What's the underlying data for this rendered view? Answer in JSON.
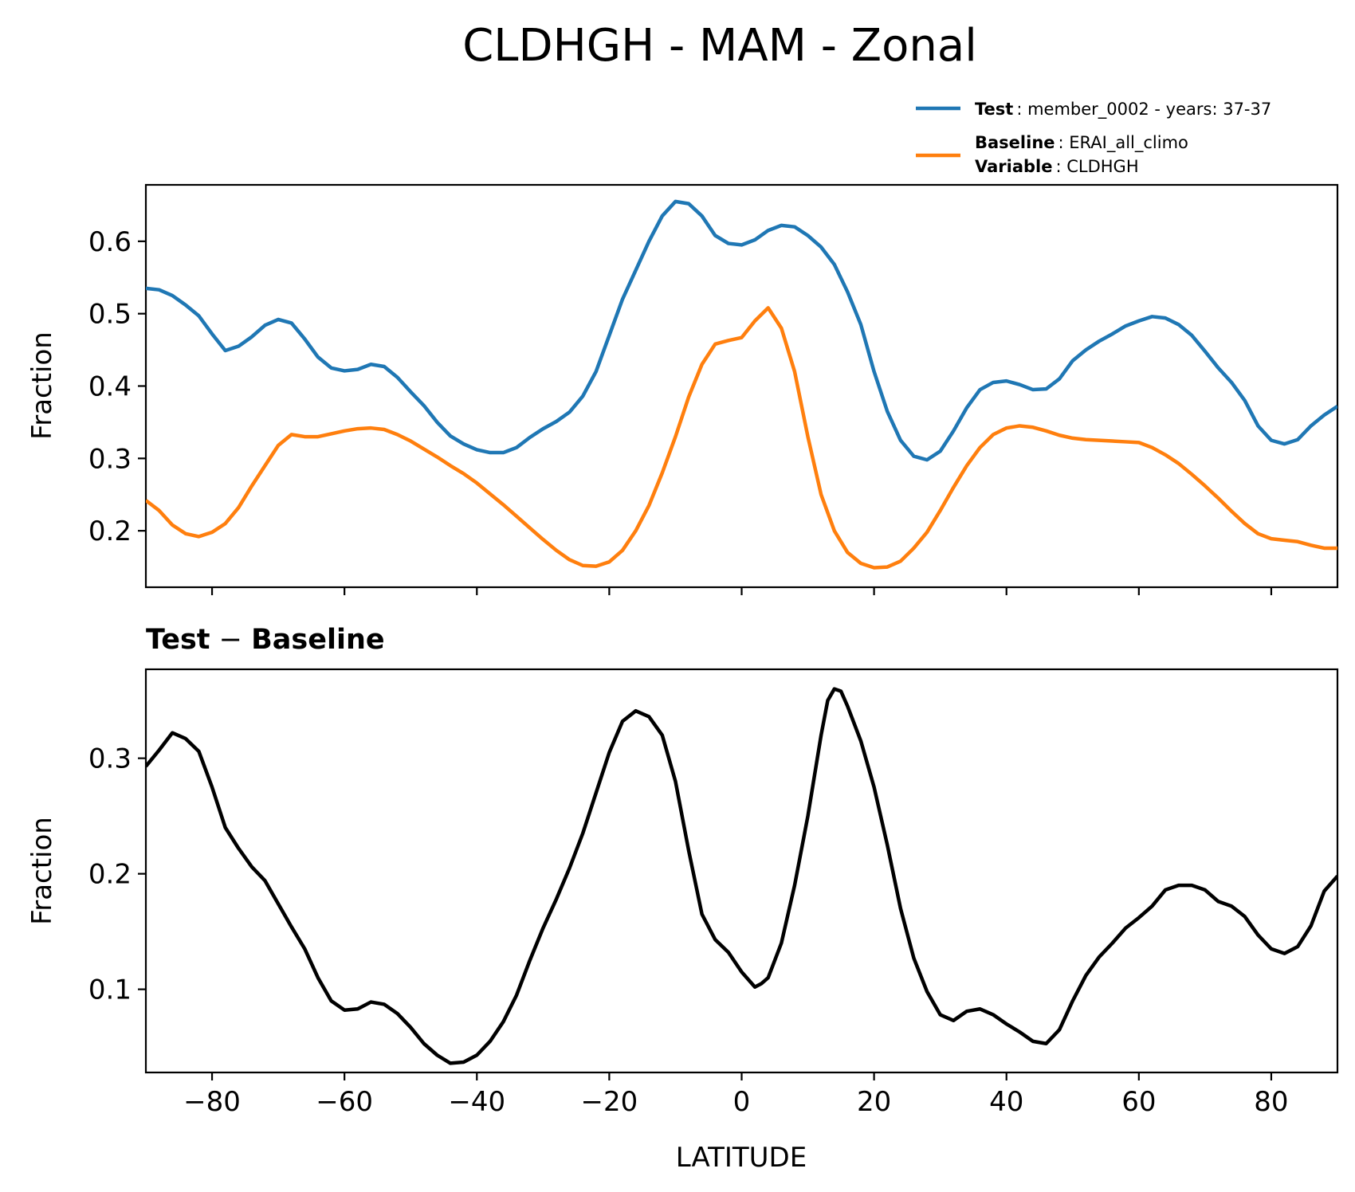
{
  "figure": {
    "title": "CLDHGH - MAM - Zonal"
  },
  "legend": {
    "test_key": "Test",
    "test_value": ": member_0002 - years: 37-37",
    "baseline_key": "Baseline",
    "baseline_value": ": ERAI_all_climo",
    "variable_key": "Variable",
    "variable_value": ": CLDHGH"
  },
  "diff_title": {
    "left": "Test",
    "op": " − ",
    "right": "Baseline"
  },
  "colors": {
    "test": "#1f77b4",
    "baseline": "#ff7f0e",
    "diff": "#000000"
  },
  "chart_data": [
    {
      "type": "line",
      "title": "CLDHGH - MAM - Zonal",
      "xlabel": "",
      "ylabel": "Fraction",
      "xlim": [
        -90,
        90
      ],
      "ylim": [
        0.122,
        0.678
      ],
      "yticks": [
        "0.2",
        "0.3",
        "0.4",
        "0.5",
        "0.6"
      ],
      "xticks": [
        -80,
        -60,
        -40,
        -20,
        0,
        20,
        40,
        60,
        80
      ],
      "legend_position": "top-right (above axes)",
      "series": [
        {
          "name": "Test",
          "x": [
            -90,
            -88,
            -86,
            -84,
            -82,
            -80,
            -78,
            -76,
            -74,
            -72,
            -70,
            -68,
            -66,
            -64,
            -62,
            -60,
            -58,
            -56,
            -54,
            -52,
            -50,
            -48,
            -46,
            -44,
            -42,
            -40,
            -38,
            -36,
            -34,
            -32,
            -30,
            -28,
            -26,
            -24,
            -22,
            -20,
            -18,
            -16,
            -14,
            -12,
            -10,
            -8,
            -6,
            -4,
            -2,
            0,
            2,
            4,
            6,
            8,
            10,
            12,
            14,
            16,
            18,
            20,
            22,
            24,
            26,
            28,
            30,
            32,
            34,
            36,
            38,
            40,
            42,
            44,
            46,
            48,
            50,
            52,
            54,
            56,
            58,
            60,
            62,
            64,
            66,
            68,
            70,
            72,
            74,
            76,
            78,
            80,
            82,
            84,
            86,
            88,
            90
          ],
          "y": [
            0.535,
            0.533,
            0.525,
            0.512,
            0.497,
            0.472,
            0.449,
            0.455,
            0.468,
            0.484,
            0.492,
            0.487,
            0.465,
            0.44,
            0.425,
            0.421,
            0.423,
            0.43,
            0.427,
            0.412,
            0.392,
            0.373,
            0.35,
            0.331,
            0.32,
            0.312,
            0.308,
            0.308,
            0.315,
            0.329,
            0.341,
            0.351,
            0.364,
            0.386,
            0.42,
            0.47,
            0.52,
            0.56,
            0.6,
            0.635,
            0.655,
            0.652,
            0.635,
            0.608,
            0.597,
            0.595,
            0.602,
            0.615,
            0.622,
            0.62,
            0.608,
            0.592,
            0.568,
            0.53,
            0.485,
            0.42,
            0.365,
            0.325,
            0.303,
            0.298,
            0.31,
            0.338,
            0.37,
            0.395,
            0.405,
            0.407,
            0.402,
            0.395,
            0.396,
            0.41,
            0.435,
            0.45,
            0.462,
            0.472,
            0.483,
            0.49,
            0.496,
            0.494,
            0.485,
            0.47,
            0.448,
            0.425,
            0.405,
            0.38,
            0.345,
            0.325,
            0.32,
            0.326,
            0.345,
            0.36,
            0.372
          ]
        },
        {
          "name": "Baseline",
          "x": [
            -90,
            -88,
            -86,
            -84,
            -82,
            -80,
            -78,
            -76,
            -74,
            -72,
            -70,
            -68,
            -66,
            -64,
            -62,
            -60,
            -58,
            -56,
            -54,
            -52,
            -50,
            -48,
            -46,
            -44,
            -42,
            -40,
            -38,
            -36,
            -34,
            -32,
            -30,
            -28,
            -26,
            -24,
            -22,
            -20,
            -18,
            -16,
            -14,
            -12,
            -10,
            -8,
            -6,
            -4,
            -2,
            0,
            2,
            4,
            6,
            8,
            10,
            12,
            14,
            16,
            18,
            20,
            22,
            24,
            26,
            28,
            30,
            32,
            34,
            36,
            38,
            40,
            42,
            44,
            46,
            48,
            50,
            52,
            54,
            56,
            58,
            60,
            62,
            64,
            66,
            68,
            70,
            72,
            74,
            76,
            78,
            80,
            82,
            84,
            86,
            88,
            90
          ],
          "y": [
            0.242,
            0.228,
            0.208,
            0.196,
            0.192,
            0.198,
            0.21,
            0.232,
            0.262,
            0.29,
            0.318,
            0.333,
            0.33,
            0.33,
            0.334,
            0.338,
            0.341,
            0.342,
            0.34,
            0.333,
            0.324,
            0.313,
            0.302,
            0.29,
            0.279,
            0.266,
            0.251,
            0.236,
            0.22,
            0.204,
            0.188,
            0.173,
            0.16,
            0.152,
            0.151,
            0.157,
            0.173,
            0.2,
            0.235,
            0.28,
            0.33,
            0.385,
            0.43,
            0.458,
            0.463,
            0.467,
            0.49,
            0.508,
            0.48,
            0.42,
            0.33,
            0.25,
            0.2,
            0.17,
            0.155,
            0.149,
            0.15,
            0.158,
            0.176,
            0.198,
            0.228,
            0.26,
            0.29,
            0.315,
            0.333,
            0.342,
            0.345,
            0.343,
            0.338,
            0.332,
            0.328,
            0.326,
            0.325,
            0.324,
            0.323,
            0.322,
            0.315,
            0.305,
            0.293,
            0.278,
            0.262,
            0.245,
            0.227,
            0.21,
            0.196,
            0.189,
            0.187,
            0.185,
            0.18,
            0.176,
            0.176
          ]
        }
      ]
    },
    {
      "type": "line",
      "title": "Test − Baseline",
      "xlabel": "LATITUDE",
      "ylabel": "Fraction",
      "xlim": [
        -90,
        90
      ],
      "ylim": [
        0.028,
        0.377
      ],
      "yticks": [
        "0.1",
        "0.2",
        "0.3"
      ],
      "xticks": [
        -80,
        -60,
        -40,
        -20,
        0,
        20,
        40,
        60,
        80
      ],
      "xtick_labels": [
        "−80",
        "−60",
        "−40",
        "−20",
        "0",
        "20",
        "40",
        "60",
        "80"
      ],
      "series": [
        {
          "name": "Test − Baseline",
          "x": [
            -90,
            -88,
            -86,
            -84,
            -82,
            -80,
            -78,
            -76,
            -74,
            -72,
            -70,
            -68,
            -66,
            -64,
            -62,
            -60,
            -58,
            -56,
            -54,
            -52,
            -50,
            -48,
            -46,
            -44,
            -42,
            -40,
            -38,
            -36,
            -34,
            -32,
            -30,
            -28,
            -26,
            -24,
            -22,
            -20,
            -18,
            -16,
            -14,
            -12,
            -10,
            -8,
            -6,
            -4,
            -2,
            0,
            2,
            3,
            4,
            6,
            8,
            10,
            12,
            13,
            14,
            15,
            16,
            18,
            20,
            22,
            24,
            26,
            28,
            30,
            32,
            34,
            36,
            38,
            40,
            42,
            44,
            46,
            48,
            50,
            52,
            54,
            56,
            58,
            60,
            62,
            64,
            66,
            68,
            70,
            72,
            74,
            76,
            78,
            80,
            82,
            84,
            86,
            88,
            90
          ],
          "y": [
            0.293,
            0.307,
            0.322,
            0.317,
            0.306,
            0.275,
            0.24,
            0.222,
            0.206,
            0.194,
            0.174,
            0.154,
            0.135,
            0.11,
            0.09,
            0.082,
            0.083,
            0.089,
            0.087,
            0.079,
            0.067,
            0.053,
            0.043,
            0.036,
            0.037,
            0.043,
            0.055,
            0.072,
            0.095,
            0.125,
            0.153,
            0.178,
            0.205,
            0.235,
            0.27,
            0.305,
            0.332,
            0.341,
            0.336,
            0.32,
            0.28,
            0.22,
            0.165,
            0.143,
            0.132,
            0.115,
            0.102,
            0.105,
            0.11,
            0.14,
            0.19,
            0.25,
            0.32,
            0.35,
            0.36,
            0.358,
            0.345,
            0.315,
            0.275,
            0.225,
            0.17,
            0.127,
            0.098,
            0.078,
            0.073,
            0.081,
            0.083,
            0.078,
            0.07,
            0.063,
            0.055,
            0.053,
            0.065,
            0.09,
            0.112,
            0.128,
            0.14,
            0.153,
            0.162,
            0.172,
            0.186,
            0.19,
            0.19,
            0.186,
            0.176,
            0.172,
            0.163,
            0.147,
            0.135,
            0.131,
            0.137,
            0.155,
            0.185,
            0.198
          ]
        }
      ]
    }
  ]
}
